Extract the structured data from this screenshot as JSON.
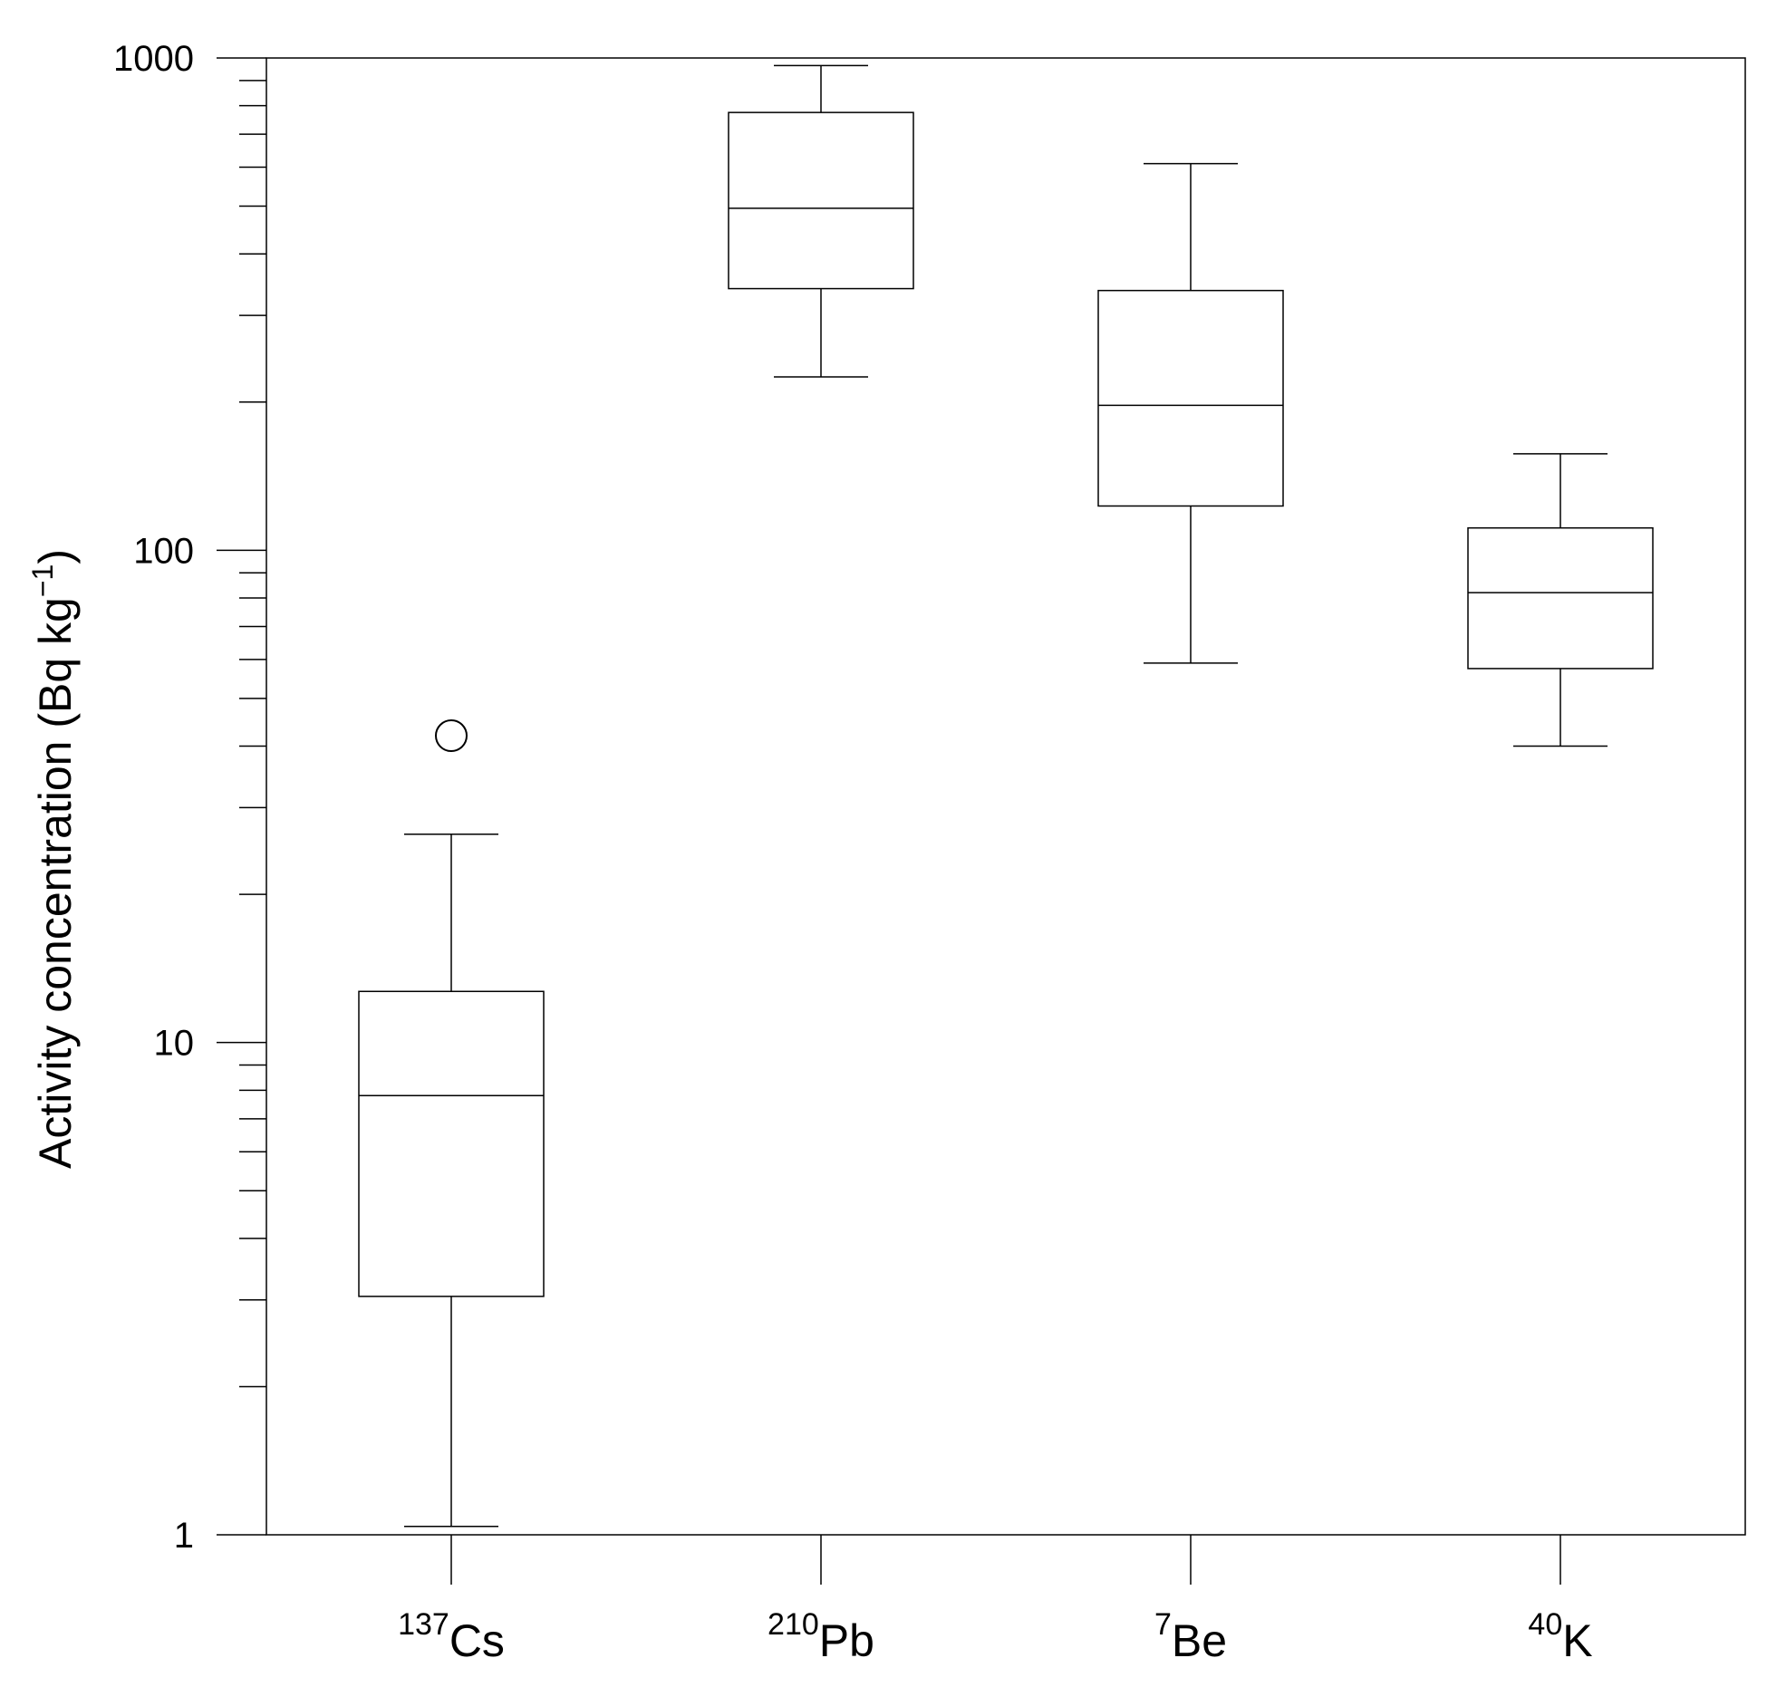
{
  "chart_data": {
    "type": "box",
    "ylabel_main": "Activity concentration (Bq kg",
    "ylabel_sup": "−1",
    "ylabel_close": ")",
    "y_scale": "log",
    "ylim": [
      1,
      1000
    ],
    "y_major_ticks": [
      {
        "value": 1,
        "label": "1"
      },
      {
        "value": 10,
        "label": "10"
      },
      {
        "value": 100,
        "label": "100"
      },
      {
        "value": 1000,
        "label": "1000"
      }
    ],
    "grid": false,
    "categories": [
      {
        "sup": "137",
        "name": "Cs",
        "min": 1.04,
        "q1": 3.05,
        "median": 7.8,
        "q3": 12.7,
        "max": 26.5,
        "outliers": [
          42
        ]
      },
      {
        "sup": "210",
        "name": "Pb",
        "min": 225,
        "q1": 340,
        "median": 495,
        "q3": 775,
        "max": 965,
        "outliers": []
      },
      {
        "sup": "7",
        "name": "Be",
        "min": 59,
        "q1": 123,
        "median": 197,
        "q3": 337,
        "max": 610,
        "outliers": []
      },
      {
        "sup": "40",
        "name": "K",
        "min": 40,
        "q1": 57.5,
        "median": 82,
        "q3": 111,
        "max": 157,
        "outliers": []
      }
    ]
  }
}
